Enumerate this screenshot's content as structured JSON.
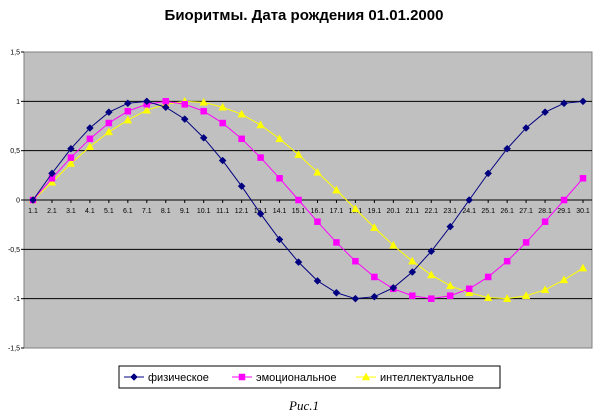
{
  "chart_data": {
    "type": "line",
    "title": "Биоритмы. Дата рождения 01.01.2000",
    "categories": [
      "1.1",
      "2.1",
      "3.1",
      "4.1",
      "5.1",
      "6.1",
      "7.1",
      "8.1",
      "9.1",
      "10.1",
      "11.1",
      "12.1",
      "13.1",
      "14.1",
      "15.1",
      "16.1",
      "17.1",
      "18.1",
      "19.1",
      "20.1",
      "21.1",
      "22.1",
      "23.1",
      "24.1",
      "25.1",
      "26.1",
      "27.1",
      "28.1",
      "29.1",
      "30.1"
    ],
    "ylim": [
      -1.5,
      1.5
    ],
    "yticks": [
      {
        "value": 1.5,
        "label": "1,5"
      },
      {
        "value": 1,
        "label": "1"
      },
      {
        "value": 0.5,
        "label": "0,5"
      },
      {
        "value": 0,
        "label": "0"
      },
      {
        "value": -0.5,
        "label": "-0,5"
      },
      {
        "value": -1,
        "label": "-1"
      },
      {
        "value": -1.5,
        "label": "-1,5"
      }
    ],
    "grid": "horizontal",
    "legend_position": "bottom",
    "plot_background": "#c0c0c0",
    "series": [
      {
        "name": "физическое",
        "color": "#000080",
        "marker": "diamond",
        "values": [
          0,
          0.27,
          0.52,
          0.73,
          0.89,
          0.98,
          1,
          0.94,
          0.82,
          0.63,
          0.4,
          0.14,
          -0.14,
          -0.4,
          -0.63,
          -0.82,
          -0.94,
          -1,
          -0.98,
          -0.89,
          -0.73,
          -0.52,
          -0.27,
          0,
          0.27,
          0.52,
          0.73,
          0.89,
          0.98,
          1
        ]
      },
      {
        "name": "эмоциональное",
        "color": "#ff00ff",
        "marker": "square",
        "values": [
          0,
          0.22,
          0.43,
          0.62,
          0.78,
          0.9,
          0.97,
          1,
          0.97,
          0.9,
          0.78,
          0.62,
          0.43,
          0.22,
          0,
          -0.22,
          -0.43,
          -0.62,
          -0.78,
          -0.9,
          -0.97,
          -1,
          -0.97,
          -0.9,
          -0.78,
          -0.62,
          -0.43,
          -0.22,
          0,
          0.22
        ]
      },
      {
        "name": "интеллектуальное",
        "color": "#ffff00",
        "marker": "triangle",
        "values": [
          0,
          0.18,
          0.37,
          0.54,
          0.69,
          0.81,
          0.91,
          0.97,
          1,
          0.99,
          0.94,
          0.87,
          0.76,
          0.62,
          0.46,
          0.28,
          0.1,
          -0.09,
          -0.28,
          -0.46,
          -0.62,
          -0.76,
          -0.87,
          -0.94,
          -0.99,
          -1,
          -0.97,
          -0.91,
          -0.81,
          -0.69
        ]
      }
    ]
  },
  "caption": "Рис.1"
}
